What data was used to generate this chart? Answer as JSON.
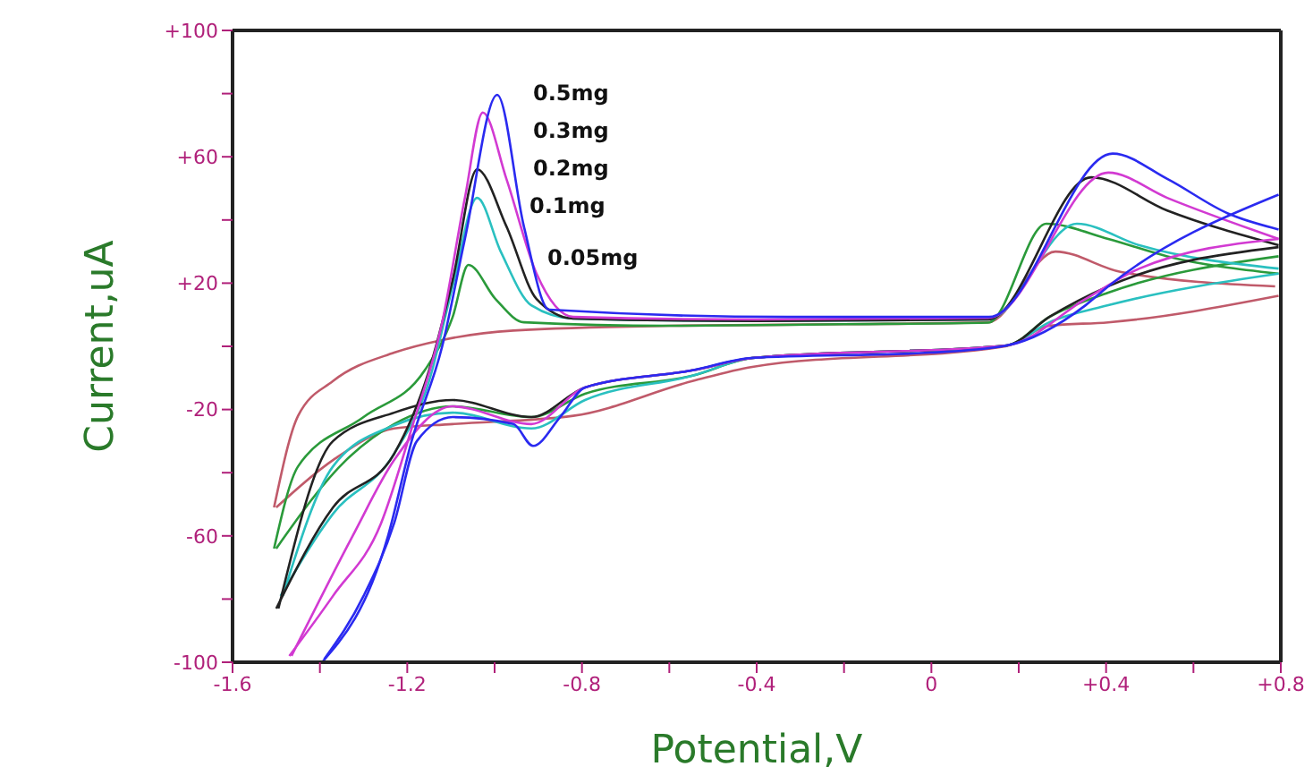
{
  "chart_data": {
    "type": "line",
    "xlabel": "Potential,V",
    "ylabel": "Current,uA",
    "xlim": [
      -1.6,
      0.8
    ],
    "ylim": [
      -100,
      100
    ],
    "xticks": [
      -1.6,
      {
        "value": -1.4,
        "label": null
      },
      -1.2,
      {
        "value": -1.0,
        "label": null
      },
      -0.8,
      {
        "value": -0.6,
        "label": null
      },
      -0.4,
      {
        "value": -0.2,
        "label": null
      },
      0,
      {
        "value": 0.2,
        "label": null
      },
      {
        "value": 0.4,
        "label": "+0.4"
      },
      {
        "value": 0.6,
        "label": null
      },
      {
        "value": 0.8,
        "label": "+0.8"
      }
    ],
    "yticks": [
      -100,
      {
        "value": -80,
        "label": null
      },
      -60,
      {
        "value": -40,
        "label": null
      },
      -20,
      {
        "value": 0,
        "label": null
      },
      {
        "value": 20,
        "label": "+20"
      },
      {
        "value": 40,
        "label": null
      },
      {
        "value": 60,
        "label": "+60"
      },
      {
        "value": 80,
        "label": null
      },
      {
        "value": 100,
        "label": "+100"
      }
    ],
    "marker": "none",
    "line_style": "solid",
    "annotations": [
      "0.5mg",
      "0.3mg",
      "0.2mg",
      "0.1mg",
      "0.05mg"
    ],
    "series": [
      {
        "color": "#c05a6a",
        "x": [
          -1.505,
          -1.45,
          -1.37,
          -1.23,
          -1.12,
          -0.957,
          -0.6,
          -0.2,
          0.13,
          0.284,
          0.435,
          0.787
        ],
        "values": [
          -51,
          -22,
          -11,
          -2,
          2,
          5,
          6.5,
          7,
          7.6,
          30,
          23.5,
          19
        ]
      },
      {
        "color": "#c05a6a",
        "x": [
          -1.5,
          -1.37,
          -1.23,
          -1.096,
          -0.82,
          -0.547,
          -0.41,
          0.17,
          0.27,
          0.405,
          0.795
        ],
        "values": [
          -51,
          -36,
          -26,
          -24.6,
          -22,
          -11,
          -6.5,
          0,
          6.5,
          7.6,
          16
        ]
      },
      {
        "color": "#2a9a3a",
        "x": [
          -1.505,
          -1.45,
          -1.3,
          -1.16,
          -1.096,
          -1.06,
          -0.998,
          -0.933,
          -0.6,
          -0.2,
          0.13,
          0.263,
          0.405,
          0.54,
          0.795
        ],
        "values": [
          -64,
          -38,
          -22.4,
          -7.6,
          9.3,
          25.8,
          15,
          7.6,
          6.5,
          7,
          7.5,
          38.8,
          34,
          28.5,
          23
        ]
      },
      {
        "color": "#2a9a3a",
        "x": [
          -1.5,
          -1.34,
          -1.23,
          -1.096,
          -0.916,
          -0.793,
          -0.547,
          -0.41,
          0.173,
          0.27,
          0.405,
          0.795
        ],
        "values": [
          -64,
          -36,
          -24.6,
          -19,
          -22.4,
          -15,
          -9.3,
          -3.7,
          0.3,
          9.3,
          17,
          28.5
        ]
      },
      {
        "color": "#2ac0c0",
        "x": [
          -1.49,
          -1.37,
          -1.23,
          -1.15,
          -1.096,
          -1.04,
          -0.986,
          -0.916,
          -0.82,
          -0.4,
          0.13,
          0.333,
          0.476,
          0.795
        ],
        "values": [
          -79,
          -53,
          -34,
          -11,
          19,
          47,
          30,
          13,
          8.8,
          8,
          8.5,
          38.8,
          32,
          24.6
        ]
      },
      {
        "color": "#2ac0c0",
        "x": [
          -1.485,
          -1.37,
          -1.23,
          -1.096,
          -0.916,
          -0.793,
          -0.547,
          -0.41,
          0.173,
          0.27,
          0.405,
          0.795
        ],
        "values": [
          -79,
          -38,
          -25,
          -21,
          -26,
          -17,
          -9.3,
          -3.7,
          0.3,
          7.6,
          13,
          23
        ]
      },
      {
        "color": "#222222",
        "x": [
          -1.5,
          -1.37,
          -1.23,
          -1.15,
          -1.096,
          -1.04,
          -0.973,
          -0.904,
          -0.82,
          -0.4,
          0.13,
          0.366,
          0.54,
          0.795
        ],
        "values": [
          -83,
          -51,
          -34,
          -7.6,
          21,
          56,
          38,
          15,
          8.8,
          8,
          8.5,
          53.5,
          43,
          32
        ]
      },
      {
        "color": "#222222",
        "x": [
          -1.495,
          -1.37,
          -1.23,
          -1.096,
          -0.916,
          -0.793,
          -0.547,
          -0.41,
          0.173,
          0.27,
          0.405,
          0.795
        ],
        "values": [
          -83,
          -30,
          -21,
          -17,
          -22.4,
          -13,
          -7.6,
          -3.7,
          0.3,
          9.3,
          19,
          31.4
        ]
      },
      {
        "color": "#d23ad2",
        "x": [
          -1.47,
          -1.37,
          -1.26,
          -1.19,
          -1.12,
          -1.068,
          -1.027,
          -0.973,
          -0.904,
          -0.82,
          -0.4,
          0.13,
          0.405,
          0.54,
          0.795
        ],
        "values": [
          -98,
          -79,
          -56,
          -26,
          7.6,
          47,
          74,
          53,
          23,
          9.3,
          8.5,
          9,
          55,
          47,
          34
        ]
      },
      {
        "color": "#d23ad2",
        "x": [
          -1.465,
          -1.325,
          -1.23,
          -1.096,
          -0.916,
          -0.793,
          -0.547,
          -0.41,
          0.173,
          0.353,
          0.476,
          0.795
        ],
        "values": [
          -98,
          -60,
          -36,
          -19,
          -24.6,
          -13,
          -7.6,
          -3.7,
          0.3,
          15,
          24.6,
          34
        ]
      },
      {
        "color": "#2a2af0",
        "x": [
          -1.395,
          -1.244,
          -1.19,
          -1.12,
          -1.068,
          -0.994,
          -0.933,
          -0.875,
          -0.33,
          0.132,
          0.415,
          0.54,
          0.68,
          0.795
        ],
        "values": [
          -100,
          -60,
          -30,
          0,
          34,
          79.6,
          38,
          11.6,
          9.3,
          9.3,
          61,
          53,
          42,
          37
        ]
      },
      {
        "color": "#2a2af0",
        "x": [
          -1.39,
          -1.3,
          -1.23,
          -1.178,
          -1.096,
          -0.957,
          -0.912,
          -0.85,
          -0.793,
          -0.547,
          -0.412,
          -0.003,
          0.173,
          0.353,
          0.405,
          0.795
        ],
        "values": [
          -99,
          -79,
          -56,
          -30,
          -22.4,
          -24.6,
          -31.5,
          -22.4,
          -13,
          -7.6,
          -3.7,
          -2,
          0.3,
          13,
          19,
          48
        ]
      }
    ]
  }
}
